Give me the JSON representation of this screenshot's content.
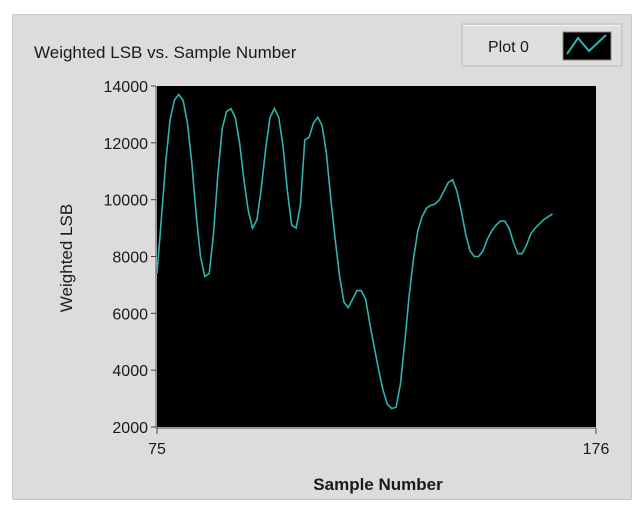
{
  "chart_data": {
    "type": "line",
    "title": "Weighted LSB vs. Sample Number",
    "xlabel": "Sample Number",
    "ylabel": "Weighted LSB",
    "xlim": [
      75,
      176
    ],
    "ylim": [
      2000,
      14000
    ],
    "x_ticks": [
      "75",
      "176"
    ],
    "y_ticks": [
      "14000",
      "12000",
      "10000",
      "8000",
      "6000",
      "4000",
      "2000"
    ],
    "y_tick_values": [
      14000,
      12000,
      10000,
      8000,
      6000,
      4000,
      2000
    ],
    "x_tick_values": [
      75,
      176
    ],
    "grid": false,
    "legend_position": "top-right",
    "plot_background": "#000000",
    "series": [
      {
        "name": "Plot 0",
        "color": "#2fb3ad",
        "points": [
          [
            75,
            7400
          ],
          [
            76,
            9300
          ],
          [
            77,
            11300
          ],
          [
            78,
            12800
          ],
          [
            79,
            13500
          ],
          [
            80,
            13700
          ],
          [
            81,
            13500
          ],
          [
            82,
            12700
          ],
          [
            83,
            11300
          ],
          [
            84,
            9500
          ],
          [
            85,
            8000
          ],
          [
            86,
            7300
          ],
          [
            87,
            7400
          ],
          [
            88,
            8800
          ],
          [
            89,
            10900
          ],
          [
            90,
            12500
          ],
          [
            91,
            13100
          ],
          [
            92,
            13200
          ],
          [
            93,
            12900
          ],
          [
            94,
            12000
          ],
          [
            95,
            10700
          ],
          [
            96,
            9600
          ],
          [
            97,
            9000
          ],
          [
            98,
            9300
          ],
          [
            99,
            10400
          ],
          [
            100,
            11800
          ],
          [
            101,
            12900
          ],
          [
            102,
            13200
          ],
          [
            103,
            12900
          ],
          [
            104,
            11900
          ],
          [
            105,
            10300
          ],
          [
            106,
            9100
          ],
          [
            107,
            9000
          ],
          [
            108,
            9800
          ],
          [
            109,
            12100
          ],
          [
            110,
            12200
          ],
          [
            111,
            12700
          ],
          [
            112,
            12900
          ],
          [
            113,
            12600
          ],
          [
            114,
            11600
          ],
          [
            115,
            10000
          ],
          [
            116,
            8600
          ],
          [
            117,
            7300
          ],
          [
            118,
            6400
          ],
          [
            119,
            6200
          ],
          [
            120,
            6500
          ],
          [
            121,
            6800
          ],
          [
            122,
            6800
          ],
          [
            123,
            6500
          ],
          [
            124,
            5600
          ],
          [
            125,
            4800
          ],
          [
            126,
            4000
          ],
          [
            127,
            3300
          ],
          [
            128,
            2800
          ],
          [
            129,
            2650
          ],
          [
            130,
            2700
          ],
          [
            131,
            3500
          ],
          [
            132,
            5000
          ],
          [
            133,
            6600
          ],
          [
            134,
            7900
          ],
          [
            135,
            8900
          ],
          [
            136,
            9400
          ],
          [
            137,
            9700
          ],
          [
            138,
            9800
          ],
          [
            139,
            9850
          ],
          [
            140,
            10000
          ],
          [
            141,
            10300
          ],
          [
            142,
            10600
          ],
          [
            143,
            10700
          ],
          [
            144,
            10300
          ],
          [
            145,
            9600
          ],
          [
            146,
            8800
          ],
          [
            147,
            8200
          ],
          [
            148,
            8000
          ],
          [
            149,
            8000
          ],
          [
            150,
            8200
          ],
          [
            151,
            8600
          ],
          [
            152,
            8900
          ],
          [
            153,
            9100
          ],
          [
            154,
            9250
          ],
          [
            155,
            9250
          ],
          [
            156,
            9000
          ],
          [
            157,
            8500
          ],
          [
            158,
            8100
          ],
          [
            159,
            8100
          ],
          [
            160,
            8400
          ],
          [
            161,
            8800
          ],
          [
            162,
            9000
          ],
          [
            163,
            9150
          ],
          [
            164,
            9300
          ],
          [
            165,
            9400
          ],
          [
            166,
            9500
          ]
        ]
      }
    ]
  },
  "legend": {
    "label": "Plot 0",
    "swatch_color": "#2fb3ad",
    "swatch_background": "#000000"
  }
}
